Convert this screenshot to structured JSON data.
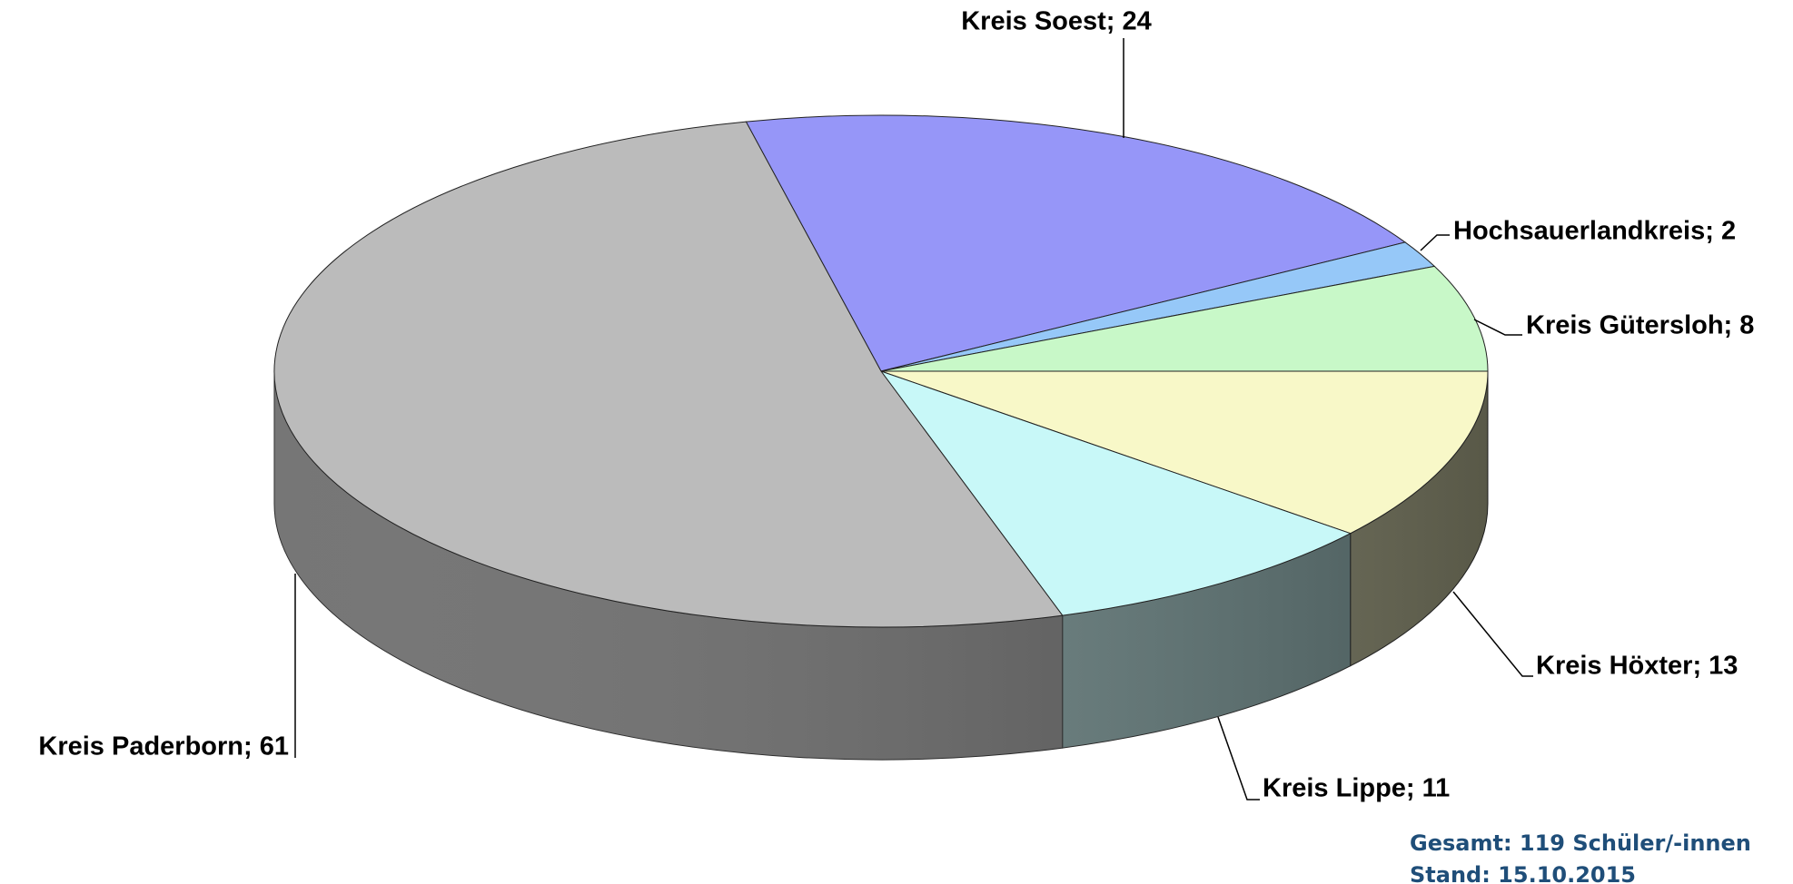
{
  "chart_data": {
    "type": "pie",
    "categories": [
      "Kreis Soest",
      "Hochsauerlandkreis",
      "Kreis Gütersloh",
      "Kreis Höxter",
      "Kreis Lippe",
      "Kreis Paderborn"
    ],
    "values": [
      24,
      2,
      8,
      13,
      11,
      61
    ],
    "value_labels": [
      "Kreis Soest; 24",
      "Hochsauerlandkreis; 2",
      "Kreis Gütersloh; 8",
      "Kreis Höxter; 13",
      "Kreis Lippe; 11",
      "Kreis Paderborn; 61"
    ],
    "colors": [
      "#9696f8",
      "#96c8f8",
      "#c8f8c8",
      "#f8f8c8",
      "#c8f8f8",
      "#bbbbbb"
    ],
    "annotations": [
      "Gesamt: 119 Schüler/-innen",
      "Stand: 15.10.2015"
    ]
  }
}
